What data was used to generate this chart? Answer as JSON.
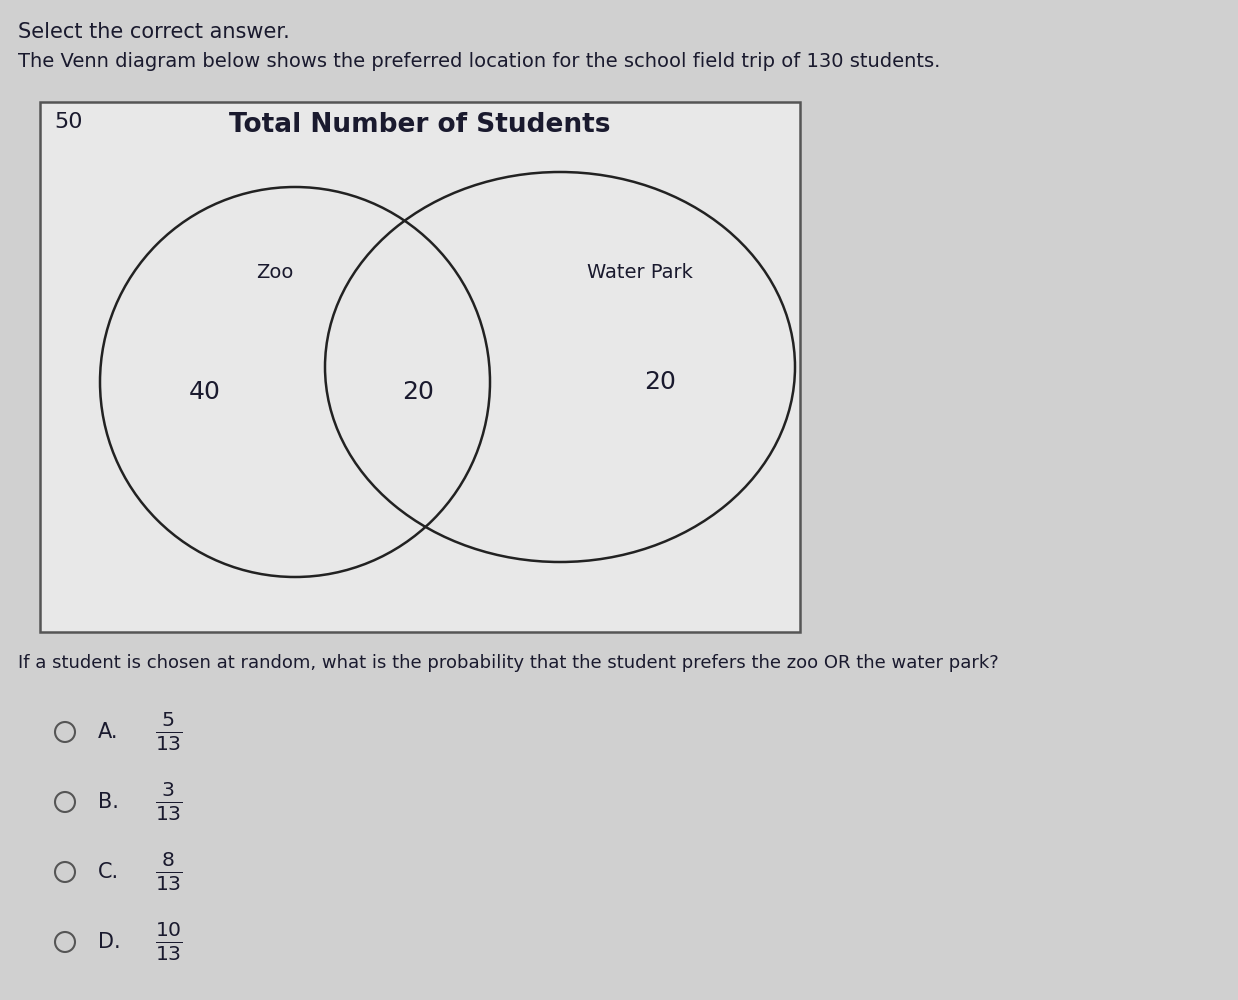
{
  "title_text": "Select the correct answer.",
  "subtitle_text": "The Venn diagram below shows the preferred location for the school field trip of 130 students.",
  "venn_title": "Total Number of Students",
  "outside_number": "50",
  "zoo_label": "Zoo",
  "water_park_label": "Water Park",
  "zoo_only": "40",
  "intersection": "20",
  "water_park_only": "20",
  "question": "If a student is chosen at random, what is the probability that the student prefers the zoo OR the water park?",
  "choices": [
    {
      "letter": "A.",
      "fraction_num": "5",
      "fraction_den": "13"
    },
    {
      "letter": "B.",
      "fraction_num": "3",
      "fraction_den": "13"
    },
    {
      "letter": "C.",
      "fraction_num": "8",
      "fraction_den": "13"
    },
    {
      "letter": "D.",
      "fraction_num": "10",
      "fraction_den": "13"
    }
  ],
  "bg_color": "#d0d0d0",
  "box_bg_color": "#e8e8e8",
  "text_color": "#1a1a2e",
  "circle_edge_color": "#222222",
  "font_size_title": 15,
  "font_size_subtitle": 14,
  "font_size_venn_title": 19,
  "font_size_numbers": 16,
  "font_size_labels": 14,
  "font_size_question": 13,
  "font_size_choices": 15,
  "font_size_outside": 16
}
